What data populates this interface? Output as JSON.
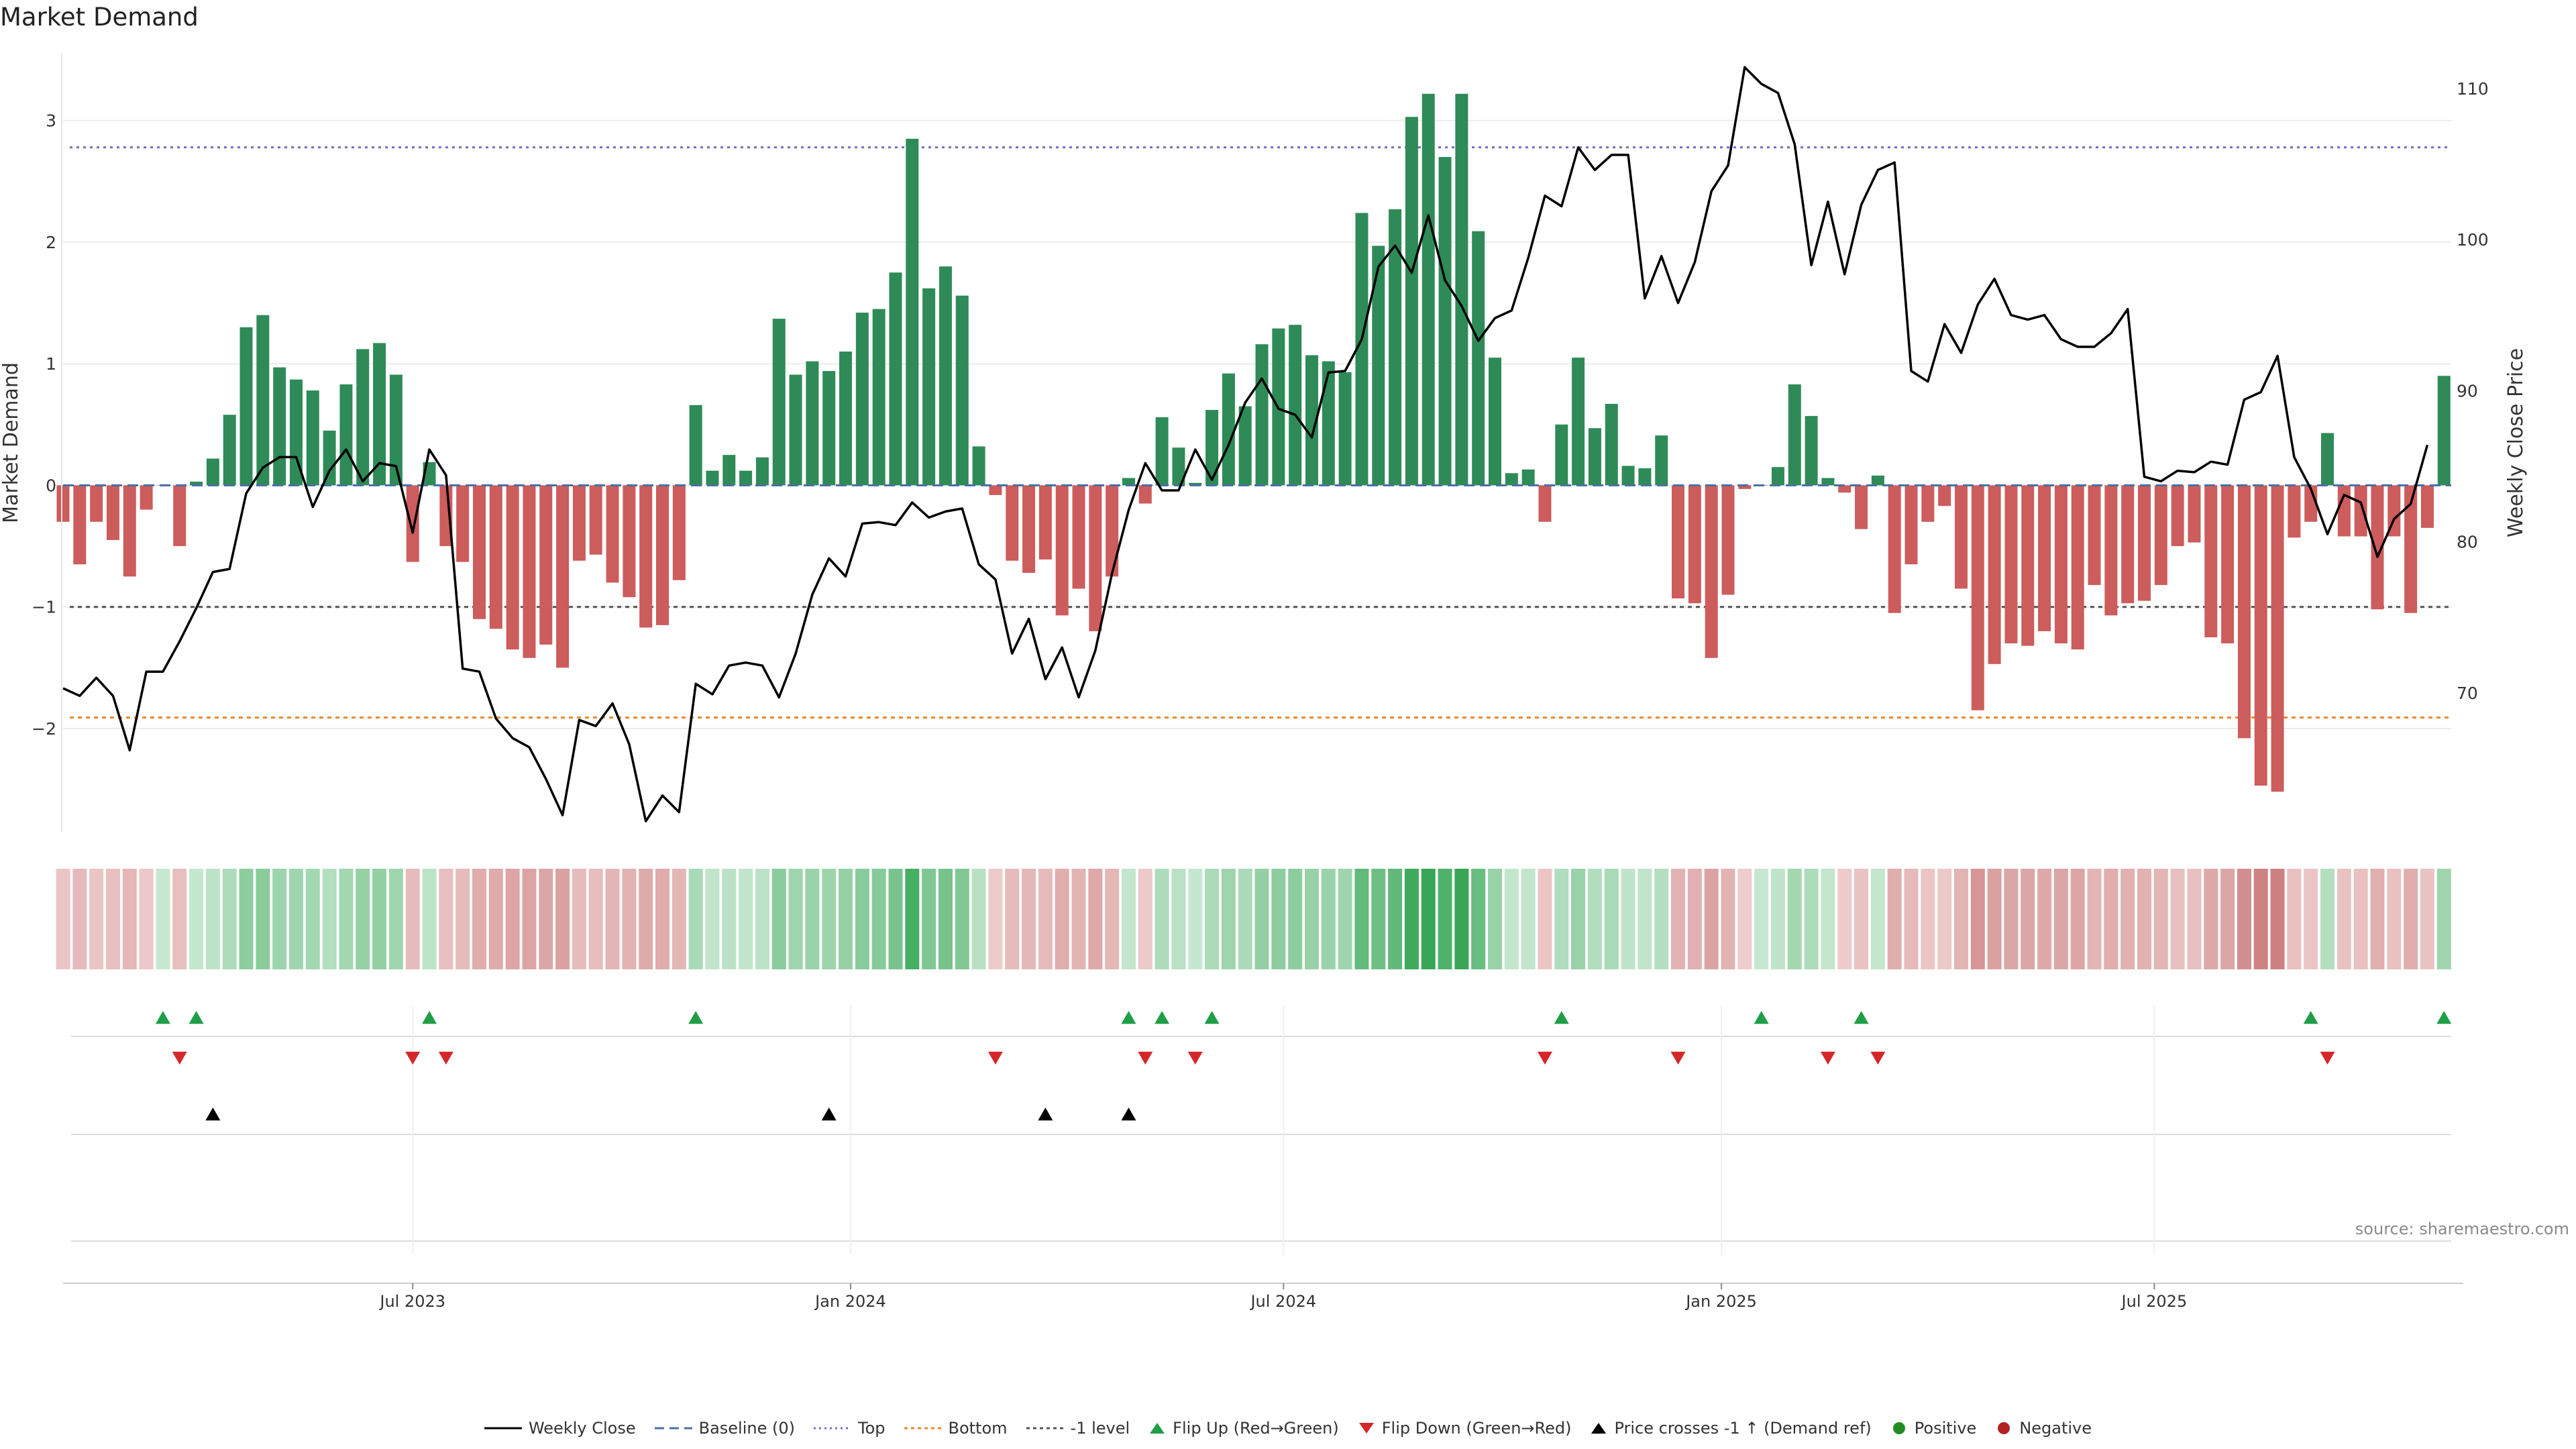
{
  "chart_title": "Market Demand",
  "source": "source: sharemaestro.com",
  "colors": {
    "positive_bar": "#2e8b57",
    "negative_bar": "#cd5c5c",
    "line": "#000000",
    "top": "#7b68c4",
    "bottom": "#e8892b",
    "minus1": "#555555",
    "baseline": "#4a6fa5",
    "flip_up": "#1f9e47",
    "flip_down": "#d62728"
  },
  "legend": [
    {
      "key": "line",
      "label": "Weekly Close"
    },
    {
      "key": "baseline",
      "label": "Baseline (0)"
    },
    {
      "key": "top",
      "label": "Top"
    },
    {
      "key": "bottom",
      "label": "Bottom"
    },
    {
      "key": "minus1",
      "label": "-1 level"
    },
    {
      "key": "flip_up",
      "label": "Flip Up (Red→Green)"
    },
    {
      "key": "flip_down",
      "label": "Flip Down (Green→Red)"
    },
    {
      "key": "cross",
      "label": "Price crosses -1 ↑ (Demand ref)"
    },
    {
      "key": "positive",
      "label": "Positive"
    },
    {
      "key": "negative",
      "label": "Negative"
    }
  ],
  "chart_data": {
    "type": "bar",
    "title": "Market Demand",
    "ylabel": "Market Demand",
    "y2label": "Weekly Close Price",
    "ylim": [
      -2.85,
      3.55
    ],
    "y2lim": [
      60.8,
      112.3
    ],
    "yticks": [
      -2,
      -1,
      0,
      1,
      2,
      3
    ],
    "y2ticks": [
      70,
      80,
      90,
      100,
      110
    ],
    "reference_levels": {
      "top": 2.78,
      "bottom": -1.91,
      "minus1": -1.0,
      "baseline": 0
    },
    "x_tick_labels": [
      {
        "label": "Jul 2023",
        "week": 21
      },
      {
        "label": "Jan 2024",
        "week": 47.3
      },
      {
        "label": "Jul 2024",
        "week": 73.3
      },
      {
        "label": "Jan 2025",
        "week": 99.6
      },
      {
        "label": "Jul 2025",
        "week": 125.6
      }
    ],
    "demand": [
      -0.3,
      -0.65,
      -0.3,
      -0.45,
      -0.75,
      -0.2,
      0.0,
      -0.5,
      0.03,
      0.22,
      0.58,
      1.3,
      1.4,
      0.97,
      0.87,
      0.78,
      0.45,
      0.83,
      1.12,
      1.17,
      0.91,
      -0.63,
      0.19,
      -0.5,
      -0.63,
      -1.1,
      -1.18,
      -1.35,
      -1.42,
      -1.31,
      -1.5,
      -0.62,
      -0.57,
      -0.8,
      -0.92,
      -1.17,
      -1.15,
      -0.78,
      0.66,
      0.12,
      0.25,
      0.12,
      0.23,
      1.37,
      0.91,
      1.02,
      0.94,
      1.1,
      1.42,
      1.45,
      1.75,
      2.85,
      1.62,
      1.8,
      1.56,
      0.32,
      -0.08,
      -0.62,
      -0.72,
      -0.61,
      -1.07,
      -0.85,
      -1.2,
      -0.75,
      0.06,
      -0.15,
      0.56,
      0.31,
      0.02,
      0.62,
      0.92,
      0.65,
      1.16,
      1.29,
      1.32,
      1.07,
      1.02,
      0.93,
      2.24,
      1.97,
      2.27,
      3.03,
      3.22,
      2.7,
      3.22,
      2.09,
      1.05,
      0.1,
      0.13,
      -0.3,
      0.5,
      1.05,
      0.47,
      0.67,
      0.16,
      0.14,
      0.41,
      -0.93,
      -0.97,
      -1.42,
      -0.9,
      -0.03,
      0.0,
      0.15,
      0.83,
      0.57,
      0.06,
      -0.06,
      -0.36,
      0.08,
      -1.05,
      -0.65,
      -0.3,
      -0.17,
      -0.85,
      -1.85,
      -1.47,
      -1.3,
      -1.32,
      -1.2,
      -1.3,
      -1.35,
      -0.82,
      -1.07,
      -0.97,
      -0.95,
      -0.82,
      -0.5,
      -0.47,
      -1.25,
      -1.3,
      -2.08,
      -2.47,
      -2.52,
      -0.43,
      -0.3,
      0.43,
      -0.42,
      -0.42,
      -1.02,
      -0.42,
      -1.05,
      -0.35,
      0.9
    ],
    "weekly_close": [
      70.3,
      69.8,
      71.0,
      69.8,
      66.2,
      71.4,
      71.4,
      73.4,
      75.6,
      78.0,
      78.2,
      83.2,
      84.9,
      85.6,
      85.6,
      82.3,
      84.7,
      86.1,
      84.0,
      85.2,
      85.0,
      80.6,
      86.1,
      84.4,
      71.6,
      71.4,
      68.3,
      67.0,
      66.4,
      64.3,
      61.9,
      68.2,
      67.8,
      69.3,
      66.6,
      61.5,
      63.2,
      62.1,
      70.6,
      69.9,
      71.8,
      72.0,
      71.8,
      69.7,
      72.6,
      76.5,
      78.9,
      77.7,
      81.2,
      81.3,
      81.1,
      82.6,
      81.6,
      82.0,
      82.2,
      78.5,
      77.5,
      72.6,
      74.9,
      70.9,
      73.0,
      69.7,
      72.8,
      77.9,
      82.1,
      85.2,
      83.4,
      83.4,
      86.1,
      84.1,
      86.4,
      89.2,
      90.8,
      88.8,
      88.4,
      86.9,
      91.2,
      91.3,
      93.4,
      98.2,
      99.6,
      97.8,
      101.6,
      97.3,
      95.6,
      93.3,
      94.8,
      95.3,
      98.8,
      102.9,
      102.2,
      106.1,
      104.6,
      105.6,
      105.6,
      96.1,
      98.9,
      95.8,
      98.5,
      103.2,
      104.9,
      111.4,
      110.3,
      109.7,
      106.3,
      98.3,
      102.5,
      97.7,
      102.3,
      104.6,
      105.1,
      91.3,
      90.6,
      94.4,
      92.5,
      95.7,
      97.4,
      95.0,
      94.7,
      95.0,
      93.4,
      92.9,
      92.9,
      93.8,
      95.4,
      84.3,
      84.0,
      84.7,
      84.6,
      85.3,
      85.1,
      89.4,
      89.9,
      92.3,
      85.6,
      83.5,
      80.5,
      83.1,
      82.6,
      79.0,
      81.5,
      82.5,
      86.4
    ],
    "flip_up_weeks": [
      6,
      8,
      22,
      38,
      64,
      66,
      69,
      90,
      102,
      108,
      135,
      143
    ],
    "flip_down_weeks": [
      7,
      21,
      23,
      56,
      65,
      68,
      89,
      97,
      106,
      109,
      136
    ],
    "price_cross_weeks": [
      9,
      46,
      59,
      64
    ]
  }
}
